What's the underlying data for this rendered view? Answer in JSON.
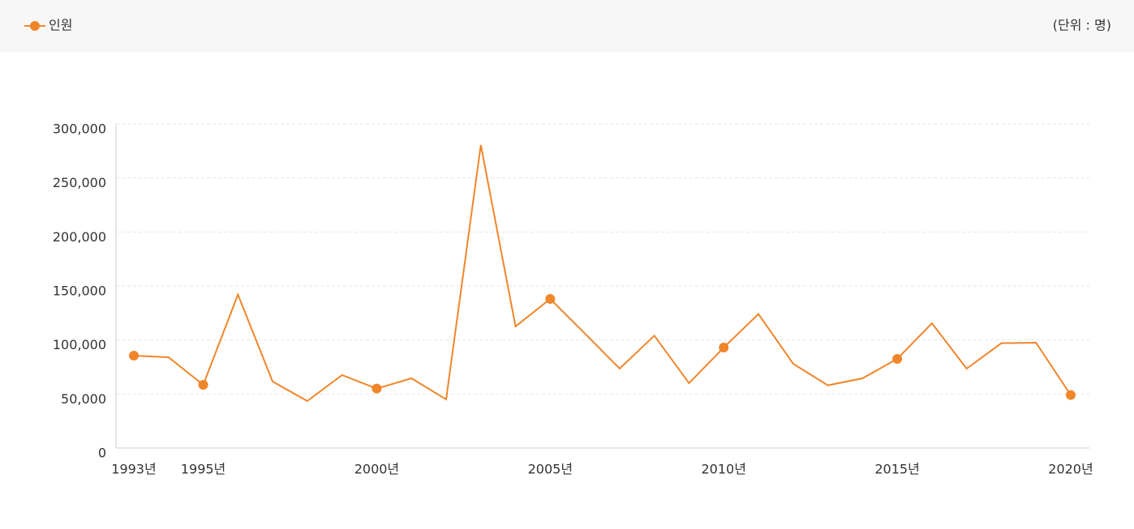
{
  "chart_data": {
    "type": "line",
    "legend_title": null,
    "unit_label": "(단위 : 명)",
    "categories": [
      "1993년",
      null,
      "1995년",
      null,
      null,
      null,
      null,
      "2000년",
      null,
      null,
      null,
      null,
      "2005년",
      null,
      null,
      null,
      null,
      "2010년",
      null,
      null,
      null,
      null,
      "2015년",
      null,
      null,
      null,
      null,
      "2020년"
    ],
    "series": [
      {
        "name": "인원",
        "color": "#f0862a",
        "values": [
          85500,
          84000,
          58500,
          142000,
          61500,
          43500,
          67500,
          55000,
          64500,
          45000,
          280500,
          112500,
          138000,
          106000,
          73500,
          104000,
          60000,
          93000,
          124000,
          78000,
          58000,
          64500,
          82500,
          115500,
          73500,
          97000,
          97500,
          49000
        ]
      }
    ],
    "ylim": [
      0,
      300000
    ],
    "yticks": [
      0,
      {
        "value": 50000,
        "label": "50,000"
      },
      {
        "value": 100000,
        "label": "100,000"
      },
      {
        "value": 150000,
        "label": "150,000"
      },
      {
        "value": 200000,
        "label": "200,000"
      },
      {
        "value": 250000,
        "label": "250,000"
      },
      {
        "value": 300000,
        "label": "300,000"
      }
    ],
    "grid": true
  }
}
